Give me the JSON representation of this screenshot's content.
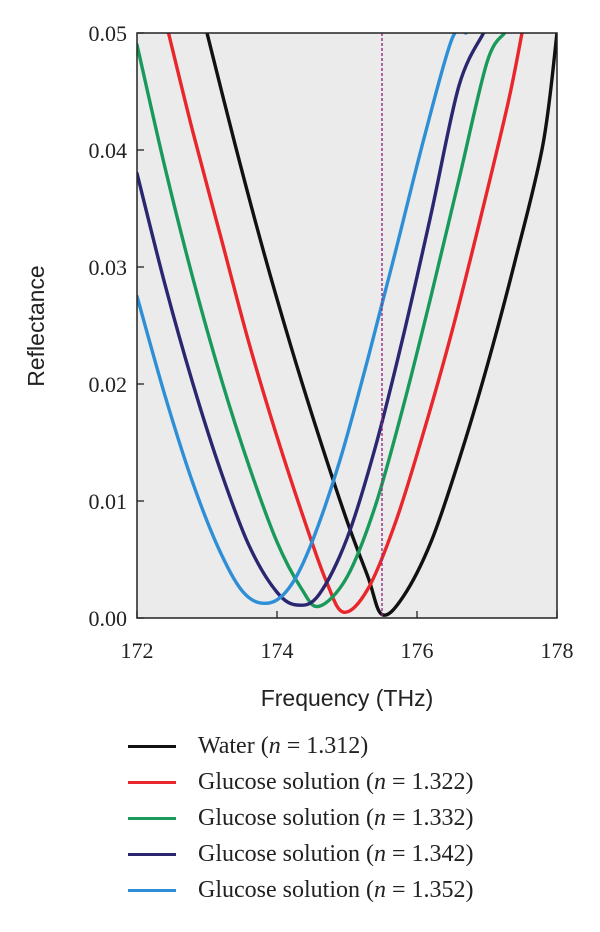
{
  "chart_data": {
    "type": "line",
    "xlabel": "Frequency (THz)",
    "ylabel": "Reflectance",
    "xlim": [
      172,
      178
    ],
    "ylim": [
      0,
      0.05
    ],
    "x_ticks": [
      "172",
      "174",
      "176",
      "178"
    ],
    "y_ticks": [
      "0.00",
      "0.01",
      "0.02",
      "0.03",
      "0.04",
      "0.05"
    ],
    "reference_line_x": 175.5,
    "grid": false,
    "legend_position": "bottom",
    "series": [
      {
        "name": "Water (n = 1.312)",
        "label_main": "Water",
        "n_value": "1.312",
        "color": "#111111",
        "x": [
          173.0,
          173.4,
          173.8,
          174.2,
          174.6,
          175.0,
          175.3,
          175.5,
          175.8,
          176.2,
          176.6,
          177.0,
          177.4,
          177.8,
          178.0
        ],
        "y": [
          0.05,
          0.0405,
          0.0315,
          0.0232,
          0.0155,
          0.0083,
          0.0035,
          0.0003,
          0.0018,
          0.0065,
          0.0135,
          0.0215,
          0.0305,
          0.0405,
          0.05
        ]
      },
      {
        "name": "Glucose solution (n = 1.322)",
        "label_main": "Glucose solution",
        "n_value": "1.322",
        "color": "#e8262b",
        "x": [
          172.45,
          172.8,
          173.2,
          173.6,
          174.0,
          174.4,
          174.7,
          174.95,
          175.3,
          175.7,
          176.1,
          176.5,
          176.9,
          177.3,
          177.5
        ],
        "y": [
          0.05,
          0.0415,
          0.0325,
          0.0235,
          0.0155,
          0.0082,
          0.0032,
          0.0005,
          0.0025,
          0.0083,
          0.016,
          0.0245,
          0.034,
          0.044,
          0.05
        ]
      },
      {
        "name": "Glucose solution (n = 1.332)",
        "label_main": "Glucose solution",
        "n_value": "1.332",
        "color": "#1a9a5a",
        "x": [
          172.0,
          172.4,
          172.8,
          173.2,
          173.6,
          174.0,
          174.35,
          174.6,
          175.0,
          175.4,
          175.8,
          176.2,
          176.6,
          177.0,
          177.25
        ],
        "y": [
          0.049,
          0.0385,
          0.029,
          0.0205,
          0.013,
          0.0065,
          0.0025,
          0.001,
          0.0035,
          0.0095,
          0.018,
          0.0275,
          0.0375,
          0.0475,
          0.05
        ]
      },
      {
        "name": "Glucose solution (n = 1.342)",
        "label_main": "Glucose solution",
        "n_value": "1.342",
        "color": "#2a2670",
        "x": [
          172.0,
          172.4,
          172.8,
          173.2,
          173.6,
          174.0,
          174.3,
          174.6,
          175.0,
          175.4,
          175.8,
          176.2,
          176.6,
          176.95
        ],
        "y": [
          0.038,
          0.0285,
          0.02,
          0.0125,
          0.0062,
          0.0022,
          0.0011,
          0.002,
          0.0068,
          0.0145,
          0.024,
          0.0345,
          0.0455,
          0.05
        ]
      },
      {
        "name": "Glucose solution (n = 1.352)",
        "label_main": "Glucose solution",
        "n_value": "1.352",
        "color": "#2f8fd6",
        "x": [
          172.0,
          172.4,
          172.8,
          173.2,
          173.55,
          173.9,
          174.2,
          174.5,
          174.9,
          175.3,
          175.7,
          176.1,
          176.5,
          176.7
        ],
        "y": [
          0.0275,
          0.019,
          0.0115,
          0.0055,
          0.002,
          0.0013,
          0.0028,
          0.0065,
          0.0135,
          0.0222,
          0.0315,
          0.041,
          0.0495,
          0.05
        ]
      }
    ]
  }
}
